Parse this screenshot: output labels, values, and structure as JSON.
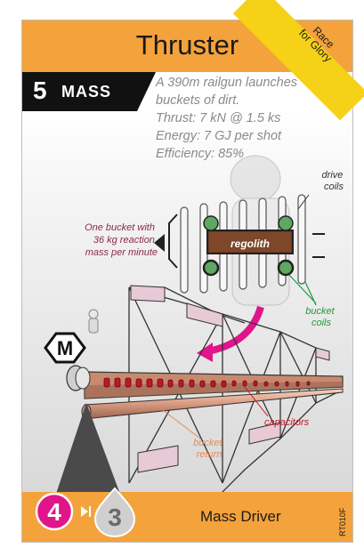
{
  "card": {
    "title": "Thruster",
    "mass_value": "5",
    "mass_label": "MASS",
    "specs": [
      "A 390m railgun launches",
      "buckets of dirt.",
      "Thrust: 7 kN @ 1.5 ks",
      "Energy: 7 GJ per shot",
      "Efficiency: 85%"
    ],
    "ribbon": [
      "Race",
      "for Glory"
    ],
    "annotations": {
      "drive_coils": [
        "drive",
        "coils"
      ],
      "bucket_note": [
        "One bucket with",
        "36 kg reaction",
        "mass per minute"
      ],
      "regolith": "regolith",
      "bucket_coils": [
        "bucket",
        "coils"
      ],
      "capacitors": "capacitors",
      "bucket_return": [
        "bucket",
        "return"
      ]
    },
    "badge_letter": "M",
    "rad_hard_value": "4",
    "therms_value": "3",
    "name": "Mass Driver",
    "code": "RT010F",
    "colors": {
      "header": "#f4a23c",
      "ribbon": "#f5d117",
      "rad_circle": "#e0158a",
      "note_text": "#8b2a4a",
      "capacitor_text": "#c0162b",
      "bucket_coils_text": "#1f9a3b",
      "bucket_return_text": "#e58a5a"
    }
  }
}
